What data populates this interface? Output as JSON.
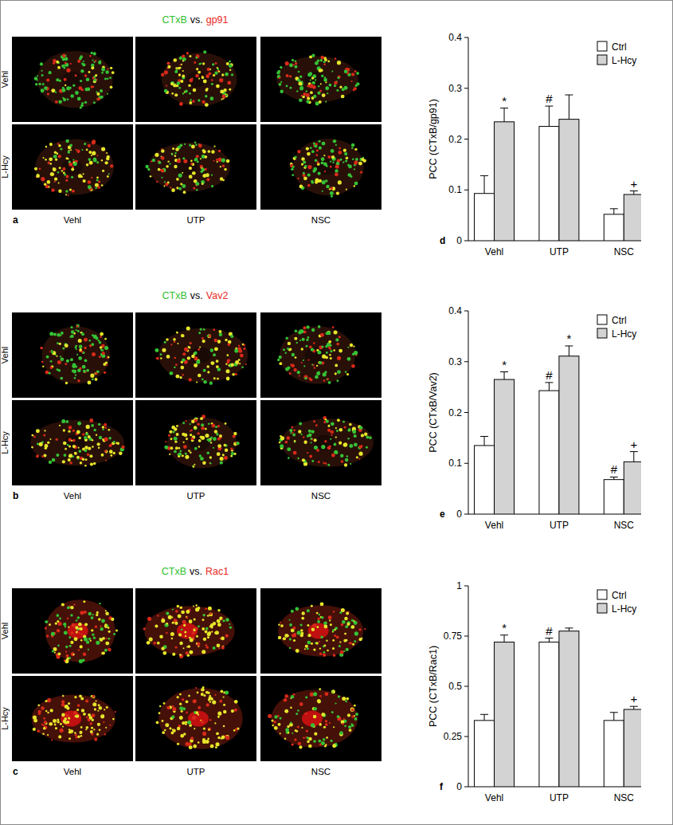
{
  "image_panels": [
    {
      "letter": "a",
      "stain_a": {
        "text": "CTxB",
        "color": "#2fbf2f"
      },
      "separator": "vs.",
      "stain_b": {
        "text": "gp91",
        "color": "#e8281e"
      },
      "rows": [
        "Vehl",
        "L-Hcy"
      ],
      "columns": [
        "Vehl",
        "UTP",
        "NSC"
      ]
    },
    {
      "letter": "b",
      "stain_a": {
        "text": "CTxB",
        "color": "#2fbf2f"
      },
      "separator": "vs.",
      "stain_b": {
        "text": "Vav2",
        "color": "#e8281e"
      },
      "rows": [
        "Vehl",
        "L-Hcy"
      ],
      "columns": [
        "Vehl",
        "UTP",
        "NSC"
      ]
    },
    {
      "letter": "c",
      "stain_a": {
        "text": "CTxB",
        "color": "#2fbf2f"
      },
      "separator": "vs.",
      "stain_b": {
        "text": "Rac1",
        "color": "#e8281e"
      },
      "rows": [
        "Vehl",
        "L-Hcy"
      ],
      "columns": [
        "Vehl",
        "UTP",
        "NSC"
      ]
    }
  ],
  "chart_data": [
    {
      "type": "bar",
      "letter": "d",
      "y_label": "PCC (CTxB/gp91)",
      "categories": [
        "Vehl",
        "UTP",
        "NSC"
      ],
      "series": [
        {
          "name": "Ctrl",
          "color": "#ffffff",
          "values": [
            0.093,
            0.225,
            0.052
          ],
          "errors": [
            0.035,
            0.04,
            0.011
          ],
          "significance": [
            null,
            "#",
            null
          ]
        },
        {
          "name": "L-Hcy",
          "color": "#d3d3d3",
          "values": [
            0.234,
            0.239,
            0.091
          ],
          "errors": [
            0.027,
            0.048,
            0.007
          ],
          "significance": [
            "*",
            null,
            "+"
          ]
        }
      ],
      "ylim": [
        0,
        0.4
      ],
      "yticks": [
        0,
        0.1,
        0.2,
        0.3,
        0.4
      ],
      "legend": "top-right",
      "grid": false
    },
    {
      "type": "bar",
      "letter": "e",
      "y_label": "PCC (CTxB/Vav2)",
      "categories": [
        "Vehl",
        "UTP",
        "NSC"
      ],
      "series": [
        {
          "name": "Ctrl",
          "color": "#ffffff",
          "values": [
            0.135,
            0.243,
            0.068
          ],
          "errors": [
            0.018,
            0.016,
            0.005
          ],
          "significance": [
            null,
            "#",
            "#"
          ]
        },
        {
          "name": "L-Hcy",
          "color": "#d3d3d3",
          "values": [
            0.265,
            0.311,
            0.103
          ],
          "errors": [
            0.015,
            0.02,
            0.02
          ],
          "significance": [
            "*",
            "*",
            "+"
          ]
        }
      ],
      "ylim": [
        0,
        0.4
      ],
      "yticks": [
        0,
        0.1,
        0.2,
        0.3,
        0.4
      ],
      "legend": "top-right",
      "grid": false
    },
    {
      "type": "bar",
      "letter": "f",
      "y_label": "PCC (CTxB/Rac1)",
      "categories": [
        "Vehl",
        "UTP",
        "NSC"
      ],
      "series": [
        {
          "name": "Ctrl",
          "color": "#ffffff",
          "values": [
            0.33,
            0.72,
            0.33
          ],
          "errors": [
            0.03,
            0.02,
            0.04
          ],
          "significance": [
            null,
            "#",
            null
          ]
        },
        {
          "name": "L-Hcy",
          "color": "#d3d3d3",
          "values": [
            0.72,
            0.775,
            0.385
          ],
          "errors": [
            0.035,
            0.015,
            0.015
          ],
          "significance": [
            "*",
            null,
            "+"
          ]
        }
      ],
      "ylim": [
        0,
        1
      ],
      "yticks": [
        0,
        0.25,
        0.5,
        0.75,
        1
      ],
      "legend": "top-right",
      "grid": false
    }
  ]
}
